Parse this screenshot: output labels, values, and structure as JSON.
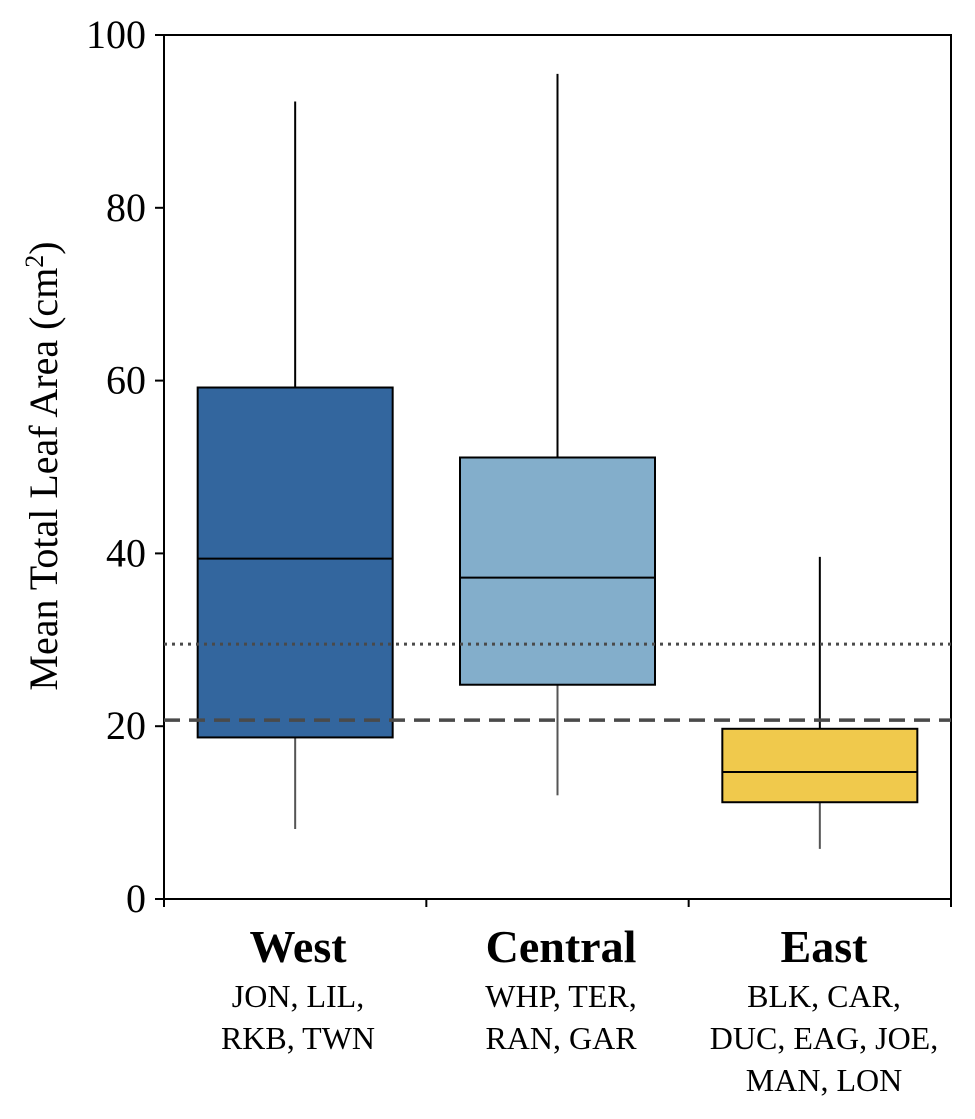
{
  "chart_data": {
    "type": "box",
    "ylabel": "Mean Total Leaf Area (cm",
    "ylabel_superscript": "2",
    "ylabel_close": ")",
    "ylim": [
      0,
      100
    ],
    "yticks": [
      0,
      20,
      40,
      60,
      80,
      100
    ],
    "grid": false,
    "reference_lines": [
      {
        "value": 29.5,
        "style": "dotted"
      },
      {
        "value": 20.7,
        "style": "dashed"
      }
    ],
    "groups": [
      {
        "name": "West",
        "sites_line1": "JON, LIL,",
        "sites_line2": "RKB, TWN",
        "sites_line3": "",
        "color": "#33669e",
        "min": 8.1,
        "q1": 18.7,
        "median": 39.4,
        "q3": 59.2,
        "max": 92.3
      },
      {
        "name": "Central",
        "sites_line1": "WHP, TER,",
        "sites_line2": "RAN, GAR",
        "sites_line3": "",
        "color": "#83aecb",
        "min": 12.0,
        "q1": 24.8,
        "median": 37.2,
        "q3": 51.1,
        "max": 95.5
      },
      {
        "name": "East",
        "sites_line1": "BLK, CAR,",
        "sites_line2": "DUC, EAG, JOE,",
        "sites_line3": "MAN, LON",
        "color": "#f0c94c",
        "min": 5.8,
        "q1": 11.2,
        "median": 14.7,
        "q3": 19.7,
        "max": 39.6
      }
    ]
  }
}
